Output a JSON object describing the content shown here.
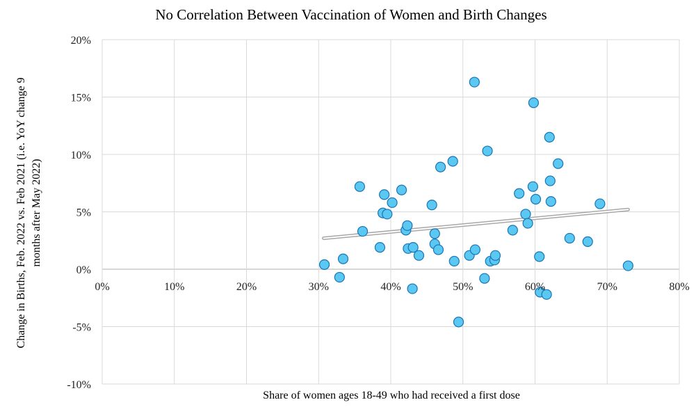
{
  "chart_data": {
    "type": "scatter",
    "title": "No Correlation Between Vaccination of Women and Birth Changes",
    "xlabel": "Share of women ages 18-49 who had received a first dose",
    "ylabel_lines": [
      "Change in Births, Feb. 2022 vs. Feb 2021 (i.e. YoY change 9",
      "months after May 2022)"
    ],
    "xlim": [
      0,
      0.8
    ],
    "ylim": [
      -0.1,
      0.2
    ],
    "x_ticks": [
      0,
      0.1,
      0.2,
      0.3,
      0.4,
      0.5,
      0.6,
      0.7,
      0.8
    ],
    "x_tick_labels": [
      "0%",
      "10%",
      "20%",
      "30%",
      "40%",
      "50%",
      "60%",
      "70%",
      "80%"
    ],
    "y_ticks": [
      -0.1,
      -0.05,
      0,
      0.05,
      0.1,
      0.15,
      0.2
    ],
    "y_tick_labels": [
      "-10%",
      "-5%",
      "0%",
      "5%",
      "10%",
      "15%",
      "20%"
    ],
    "grid": true,
    "trendline": {
      "type": "linear",
      "x": [
        0.307,
        0.729
      ],
      "y": [
        0.027,
        0.052
      ]
    },
    "colors": {
      "marker_fill": "#5bc8f2",
      "marker_stroke": "#1a74b6",
      "trendline": "#c0c0c0",
      "grid": "#d9d9d9"
    },
    "points": [
      {
        "x": 0.308,
        "y": 0.004
      },
      {
        "x": 0.329,
        "y": -0.007
      },
      {
        "x": 0.334,
        "y": 0.009
      },
      {
        "x": 0.357,
        "y": 0.072
      },
      {
        "x": 0.361,
        "y": 0.033
      },
      {
        "x": 0.385,
        "y": 0.019
      },
      {
        "x": 0.389,
        "y": 0.049
      },
      {
        "x": 0.391,
        "y": 0.065
      },
      {
        "x": 0.395,
        "y": 0.048
      },
      {
        "x": 0.402,
        "y": 0.058
      },
      {
        "x": 0.415,
        "y": 0.069
      },
      {
        "x": 0.421,
        "y": 0.034
      },
      {
        "x": 0.423,
        "y": 0.038
      },
      {
        "x": 0.424,
        "y": 0.018
      },
      {
        "x": 0.43,
        "y": -0.017
      },
      {
        "x": 0.431,
        "y": 0.019
      },
      {
        "x": 0.439,
        "y": 0.012
      },
      {
        "x": 0.457,
        "y": 0.056
      },
      {
        "x": 0.461,
        "y": 0.031
      },
      {
        "x": 0.461,
        "y": 0.022
      },
      {
        "x": 0.466,
        "y": 0.017
      },
      {
        "x": 0.469,
        "y": 0.089
      },
      {
        "x": 0.486,
        "y": 0.094
      },
      {
        "x": 0.488,
        "y": 0.007
      },
      {
        "x": 0.494,
        "y": -0.046
      },
      {
        "x": 0.509,
        "y": 0.012
      },
      {
        "x": 0.516,
        "y": 0.163
      },
      {
        "x": 0.517,
        "y": 0.017
      },
      {
        "x": 0.53,
        "y": -0.008
      },
      {
        "x": 0.534,
        "y": 0.103
      },
      {
        "x": 0.538,
        "y": 0.007
      },
      {
        "x": 0.544,
        "y": 0.008
      },
      {
        "x": 0.545,
        "y": 0.012
      },
      {
        "x": 0.569,
        "y": 0.034
      },
      {
        "x": 0.578,
        "y": 0.066
      },
      {
        "x": 0.587,
        "y": 0.048
      },
      {
        "x": 0.59,
        "y": 0.04
      },
      {
        "x": 0.597,
        "y": 0.072
      },
      {
        "x": 0.598,
        "y": 0.145
      },
      {
        "x": 0.601,
        "y": 0.061
      },
      {
        "x": 0.606,
        "y": 0.011
      },
      {
        "x": 0.607,
        "y": -0.02
      },
      {
        "x": 0.616,
        "y": -0.022
      },
      {
        "x": 0.62,
        "y": 0.115
      },
      {
        "x": 0.621,
        "y": 0.077
      },
      {
        "x": 0.622,
        "y": 0.059
      },
      {
        "x": 0.632,
        "y": 0.092
      },
      {
        "x": 0.648,
        "y": 0.027
      },
      {
        "x": 0.673,
        "y": 0.024
      },
      {
        "x": 0.69,
        "y": 0.057
      },
      {
        "x": 0.729,
        "y": 0.003
      }
    ]
  }
}
